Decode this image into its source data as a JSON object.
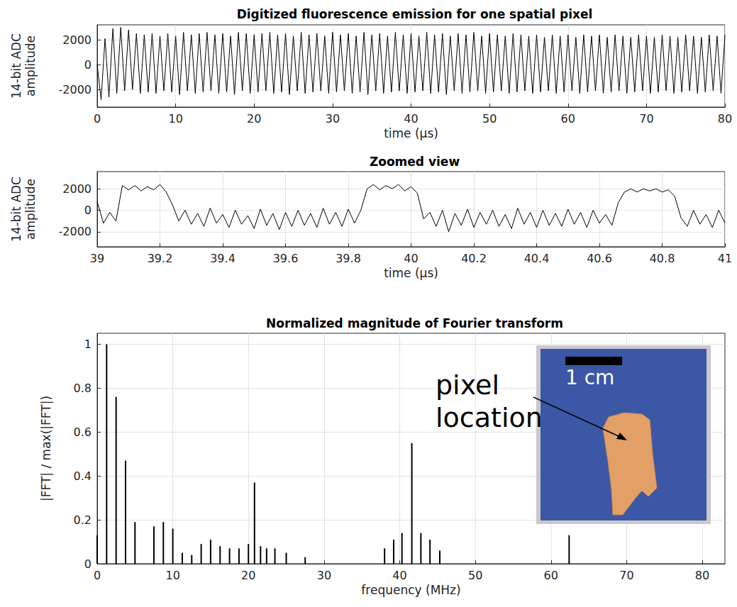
{
  "chart_data": [
    {
      "type": "line",
      "title": "Digitized fluorescence emission for one spatial pixel",
      "x_label": "time (μs)",
      "y_label": "14-bit ADC\namplitude",
      "xlim": [
        0,
        80
      ],
      "xticks": [
        0,
        10,
        20,
        30,
        40,
        50,
        60,
        70,
        80
      ],
      "ylim": [
        -3400,
        3200
      ],
      "yticks": [
        -2000,
        0,
        2000
      ],
      "grid": true,
      "series": [
        {
          "color": "#000000",
          "x": [
            0,
            0.5,
            1,
            1.5,
            2,
            2.5,
            3,
            3.5,
            4,
            4.5,
            5,
            5.5,
            6,
            6.5,
            7,
            7.5,
            8,
            8.5,
            9,
            9.5,
            10,
            10.5,
            11,
            11.5,
            12,
            12.5,
            13,
            13.5,
            14,
            14.5,
            15,
            15.5,
            16,
            16.5,
            17,
            17.5,
            18,
            18.5,
            19,
            19.5,
            20,
            20.5,
            21,
            21.5,
            22,
            22.5,
            23,
            23.5,
            24,
            24.5,
            25,
            25.5,
            26,
            26.5,
            27,
            27.5,
            28,
            28.5,
            29,
            29.5,
            30,
            30.5,
            31,
            31.5,
            32,
            32.5,
            33,
            33.5,
            34,
            34.5,
            35,
            35.5,
            36,
            36.5,
            37,
            37.5,
            38,
            38.5,
            39,
            39.5,
            40,
            40.5,
            41,
            41.5,
            42,
            42.5,
            43,
            43.5,
            44,
            44.5,
            45,
            45.5,
            46,
            46.5,
            47,
            47.5,
            48,
            48.5,
            49,
            49.5,
            50,
            50.5,
            51,
            51.5,
            52,
            52.5,
            53,
            53.5,
            54,
            54.5,
            55,
            55.5,
            56,
            56.5,
            57,
            57.5,
            58,
            58.5,
            59,
            59.5,
            60,
            60.5,
            61,
            61.5,
            62,
            62.5,
            63,
            63.5,
            64,
            64.5,
            65,
            65.5,
            66,
            66.5,
            67,
            67.5,
            68,
            68.5,
            69,
            69.5,
            70,
            70.5,
            71,
            71.5,
            72,
            72.5,
            73,
            73.5,
            74,
            74.5,
            75,
            75.5,
            76,
            76.5,
            77,
            77.5,
            78,
            78.5,
            79,
            79.5,
            80
          ],
          "values": [
            0,
            -2800,
            2100,
            -2600,
            2900,
            -2300,
            3000,
            -2100,
            2800,
            -2000,
            2500,
            -2300,
            2400,
            -2200,
            2500,
            -2300,
            2300,
            -2100,
            2500,
            -2200,
            2300,
            -2400,
            2600,
            -2100,
            2400,
            -2300,
            2500,
            -2200,
            2600,
            -2100,
            2400,
            -2300,
            2500,
            -2200,
            2300,
            -2400,
            2600,
            -2100,
            2500,
            -2300,
            2400,
            -2200,
            2500,
            -2100,
            2600,
            -2300,
            2400,
            -2200,
            2500,
            -2400,
            2300,
            -2100,
            2600,
            -2300,
            2400,
            -2200,
            2500,
            -2100,
            2300,
            -2300,
            2600,
            -2200,
            2400,
            -2100,
            2500,
            -2300,
            2300,
            -2200,
            2600,
            -2400,
            2400,
            -2100,
            2500,
            -2300,
            2300,
            -2200,
            2600,
            -2100,
            2400,
            -2300,
            2500,
            -2200,
            2300,
            -2100,
            2600,
            -2300,
            2400,
            -2200,
            2500,
            -2400,
            2300,
            -2100,
            2500,
            -2300,
            2400,
            -2200,
            2600,
            -2100,
            2300,
            -2300,
            2500,
            -2200,
            2400,
            -2100,
            2300,
            -2300,
            2500,
            -2200,
            2400,
            -2100,
            2300,
            -2300,
            2400,
            -2200,
            2200,
            -2100,
            2400,
            -2300,
            2300,
            -2200,
            2400,
            -2100,
            2200,
            -2300,
            2400,
            -2200,
            2300,
            -2100,
            2400,
            -2300,
            2200,
            -2200,
            2400,
            -2100,
            2300,
            -2300,
            2200,
            -2200,
            2400,
            -2100,
            2300,
            -2300,
            2200,
            -2200,
            2400,
            -2100,
            2300,
            -2300,
            2200,
            -2200,
            2400,
            -2100,
            2300,
            -2300,
            2200,
            -2200,
            2400,
            -2100,
            2300,
            -2300,
            2400
          ]
        }
      ]
    },
    {
      "type": "line",
      "title": "Zoomed view",
      "x_label": "time (μs)",
      "y_label": "14-bit ADC\namplitude",
      "xlim": [
        39,
        41
      ],
      "xticks": [
        39,
        39.2,
        39.4,
        39.6,
        39.8,
        40,
        40.2,
        40.4,
        40.6,
        40.8,
        41
      ],
      "ylim": [
        -3400,
        3600
      ],
      "yticks": [
        -2000,
        0,
        2000
      ],
      "grid": true,
      "series": [
        {
          "color": "#000000",
          "x": [
            39,
            39.02,
            39.04,
            39.06,
            39.08,
            39.1,
            39.12,
            39.14,
            39.16,
            39.18,
            39.2,
            39.22,
            39.24,
            39.26,
            39.28,
            39.3,
            39.32,
            39.34,
            39.36,
            39.38,
            39.4,
            39.42,
            39.44,
            39.46,
            39.48,
            39.5,
            39.52,
            39.54,
            39.56,
            39.58,
            39.6,
            39.62,
            39.64,
            39.66,
            39.68,
            39.7,
            39.72,
            39.74,
            39.76,
            39.78,
            39.8,
            39.82,
            39.84,
            39.86,
            39.88,
            39.9,
            39.92,
            39.94,
            39.96,
            39.98,
            40,
            40.02,
            40.04,
            40.06,
            40.08,
            40.1,
            40.12,
            40.14,
            40.16,
            40.18,
            40.2,
            40.22,
            40.24,
            40.26,
            40.28,
            40.3,
            40.32,
            40.34,
            40.36,
            40.38,
            40.4,
            40.42,
            40.44,
            40.46,
            40.48,
            40.5,
            40.52,
            40.54,
            40.56,
            40.58,
            40.6,
            40.62,
            40.64,
            40.66,
            40.68,
            40.7,
            40.72,
            40.74,
            40.76,
            40.78,
            40.8,
            40.82,
            40.84,
            40.86,
            40.88,
            40.9,
            40.92,
            40.94,
            40.96,
            40.98,
            41
          ],
          "values": [
            800,
            -1200,
            -200,
            -1000,
            2300,
            1900,
            2300,
            1800,
            2200,
            1900,
            2400,
            1700,
            500,
            -1000,
            0,
            -1300,
            -300,
            -1500,
            200,
            -1200,
            -400,
            -1600,
            0,
            -1300,
            -500,
            -1700,
            100,
            -1400,
            -300,
            -1800,
            -200,
            -1500,
            0,
            -1400,
            -300,
            -1600,
            200,
            -1300,
            -200,
            -1500,
            100,
            -1200,
            0,
            2000,
            2400,
            1900,
            2300,
            2000,
            2400,
            1800,
            2200,
            1600,
            -800,
            -200,
            -1500,
            0,
            -2000,
            -300,
            -1400,
            100,
            -1600,
            -200,
            -1300,
            0,
            -1500,
            -400,
            -1700,
            200,
            -1300,
            -200,
            -1600,
            0,
            -1400,
            -300,
            -1500,
            100,
            -1300,
            -200,
            -1600,
            0,
            -1200,
            -400,
            -1400,
            700,
            1700,
            2000,
            1700,
            2000,
            1800,
            2000,
            1700,
            1900,
            1300,
            -700,
            -1500,
            0,
            -1300,
            -400,
            -1600,
            0,
            -1200
          ]
        }
      ]
    },
    {
      "type": "bar",
      "title": "Normalized magnitude of Fourier transform",
      "x_label": "frequency (MHz)",
      "y_label": "|FFT| / max(|FFT|)",
      "xlim": [
        0,
        83
      ],
      "xticks": [
        0,
        10,
        20,
        30,
        40,
        50,
        60,
        70,
        80
      ],
      "ylim": [
        0,
        1.05
      ],
      "yticks": [
        0,
        0.2,
        0.4,
        0.6,
        0.8,
        1
      ],
      "grid": true,
      "annotations": [
        "pixel\nlocation",
        "1 cm"
      ],
      "series": [
        {
          "color": "#000000",
          "x": [
            0,
            1.25,
            2.5,
            3.75,
            5,
            7.5,
            8.75,
            10,
            11.25,
            12.5,
            13.75,
            15,
            16.25,
            17.5,
            18.75,
            20,
            20.8,
            21.6,
            22.4,
            23.5,
            25,
            27.5,
            38,
            39.2,
            40.3,
            41.6,
            42.8,
            44,
            45.3,
            62.4
          ],
          "values": [
            0.13,
            1,
            0.76,
            0.47,
            0.19,
            0.17,
            0.19,
            0.16,
            0.05,
            0.04,
            0.09,
            0.11,
            0.08,
            0.07,
            0.07,
            0.09,
            0.37,
            0.08,
            0.07,
            0.07,
            0.05,
            0.03,
            0.07,
            0.11,
            0.14,
            0.55,
            0.14,
            0.11,
            0.06,
            0.13
          ]
        }
      ]
    }
  ]
}
